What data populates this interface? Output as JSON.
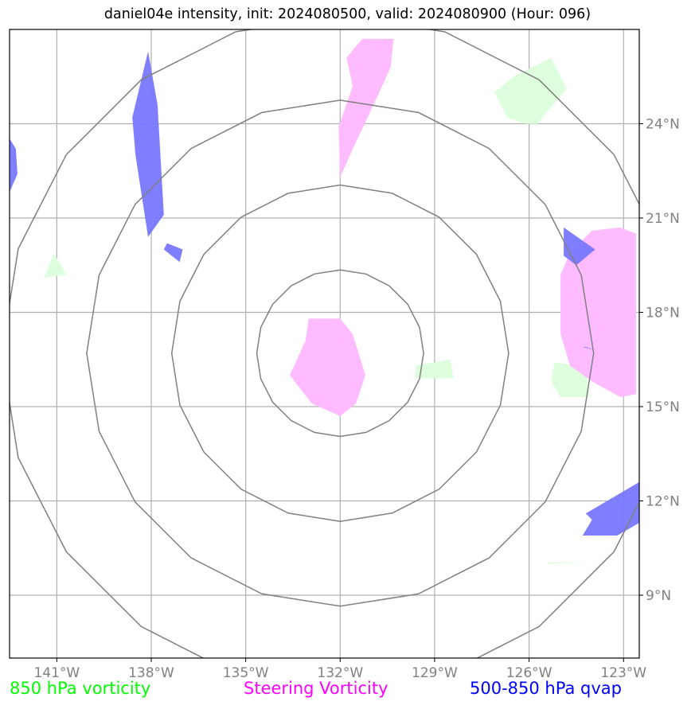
{
  "title": "daniel04e intensity, init: 2024080500, valid: 2024080900 (Hour: 096)",
  "chart_data": {
    "type": "map",
    "projection": "lat-lon",
    "xlim": [
      -142.5,
      -122.5
    ],
    "ylim": [
      7,
      27
    ],
    "lon_ticks": [
      -141,
      -138,
      -135,
      -132,
      -129,
      -126,
      -123
    ],
    "lon_labels": [
      "141°W",
      "138°W",
      "135°W",
      "132°W",
      "129°W",
      "126°W",
      "123°W"
    ],
    "lat_ticks": [
      9,
      12,
      15,
      18,
      21,
      24
    ],
    "lat_labels": [
      "9°N",
      "12°N",
      "15°N",
      "18°N",
      "21°N",
      "24°N"
    ],
    "grid": true,
    "range_rings": {
      "center": [
        -132,
        16.7
      ],
      "radii_deg": [
        2.65,
        5.35,
        8.05,
        10.75
      ],
      "color": "#808080"
    },
    "fields": [
      {
        "name": "850 hPa vorticity",
        "color": "#00ff00",
        "fill": "#ddffdd",
        "polygons": [
          [
            [
              -126.5,
              25.5
            ],
            [
              -125.3,
              26.1
            ],
            [
              -124.8,
              25.1
            ],
            [
              -125.5,
              24.3
            ],
            [
              -125.7,
              24.0
            ],
            [
              -126.1,
              24.0
            ],
            [
              -126.7,
              24.2
            ],
            [
              -127.1,
              25.0
            ]
          ],
          [
            [
              -141.1,
              19.9
            ],
            [
              -140.7,
              19.2
            ],
            [
              -141.4,
              19.1
            ]
          ],
          [
            [
              -129.6,
              16.3
            ],
            [
              -128.5,
              16.5
            ],
            [
              -128.4,
              15.9
            ],
            [
              -129.6,
              15.9
            ]
          ],
          [
            [
              -125.2,
              16.4
            ],
            [
              -124.2,
              16.3
            ],
            [
              -124.1,
              15.3
            ],
            [
              -125.0,
              15.3
            ],
            [
              -125.3,
              15.8
            ]
          ],
          [
            [
              -125.4,
              10.0
            ],
            [
              -124.0,
              10.05
            ],
            [
              -125.4,
              10.05
            ]
          ]
        ]
      },
      {
        "name": "Steering Vorticity",
        "color": "#ff00ff",
        "fill": "#ffbbff",
        "polygons": [
          [
            [
              -131.3,
              26.7
            ],
            [
              -130.3,
              26.7
            ],
            [
              -130.4,
              25.8
            ],
            [
              -130.8,
              24.9
            ],
            [
              -131.6,
              23.2
            ],
            [
              -132.0,
              22.3
            ],
            [
              -132.05,
              23.9
            ],
            [
              -131.6,
              25.2
            ],
            [
              -131.8,
              26.1
            ]
          ],
          [
            [
              -133.0,
              17.8
            ],
            [
              -132.0,
              17.8
            ],
            [
              -131.6,
              17.3
            ],
            [
              -131.2,
              16.0
            ],
            [
              -131.5,
              15.1
            ],
            [
              -132.0,
              14.7
            ],
            [
              -132.9,
              15.1
            ],
            [
              -133.6,
              16.0
            ],
            [
              -133.1,
              17.1
            ]
          ],
          [
            [
              -124.0,
              20.6
            ],
            [
              -123.1,
              20.7
            ],
            [
              -122.6,
              20.5
            ],
            [
              -122.6,
              15.4
            ],
            [
              -123.1,
              15.3
            ],
            [
              -124.0,
              15.8
            ],
            [
              -124.7,
              16.3
            ],
            [
              -125.0,
              17.3
            ],
            [
              -125.0,
              19.2
            ],
            [
              -124.7,
              19.9
            ]
          ]
        ]
      },
      {
        "name": "500-850 hPa qvap",
        "color": "#0000ff",
        "fill": "#7777ff",
        "polygons": [
          [
            [
              -138.1,
              26.3
            ],
            [
              -137.8,
              24.6
            ],
            [
              -137.6,
              21.1
            ],
            [
              -138.1,
              20.4
            ],
            [
              -138.5,
              23.0
            ],
            [
              -138.6,
              24.2
            ]
          ],
          [
            [
              -142.6,
              23.7
            ],
            [
              -142.3,
              23.2
            ],
            [
              -142.25,
              22.4
            ],
            [
              -142.6,
              21.6
            ]
          ],
          [
            [
              -137.5,
              20.2
            ],
            [
              -137.0,
              20.0
            ],
            [
              -137.1,
              19.6
            ],
            [
              -137.6,
              20.0
            ]
          ],
          [
            [
              -124.9,
              20.7
            ],
            [
              -123.9,
              20.0
            ],
            [
              -124.5,
              19.5
            ],
            [
              -124.9,
              19.8
            ]
          ],
          [
            [
              -124.3,
              16.9
            ],
            [
              -123.9,
              16.8
            ],
            [
              -124.2,
              16.9
            ]
          ],
          [
            [
              -124.2,
              11.6
            ],
            [
              -122.5,
              12.6
            ],
            [
              -122.5,
              11.3
            ],
            [
              -123.2,
              10.9
            ],
            [
              -124.3,
              10.9
            ],
            [
              -124.0,
              11.4
            ]
          ]
        ]
      }
    ]
  },
  "legend": {
    "vort850": "850 hPa vorticity",
    "steering": "Steering Vorticity",
    "qvap": "500-850 hPa qvap"
  }
}
